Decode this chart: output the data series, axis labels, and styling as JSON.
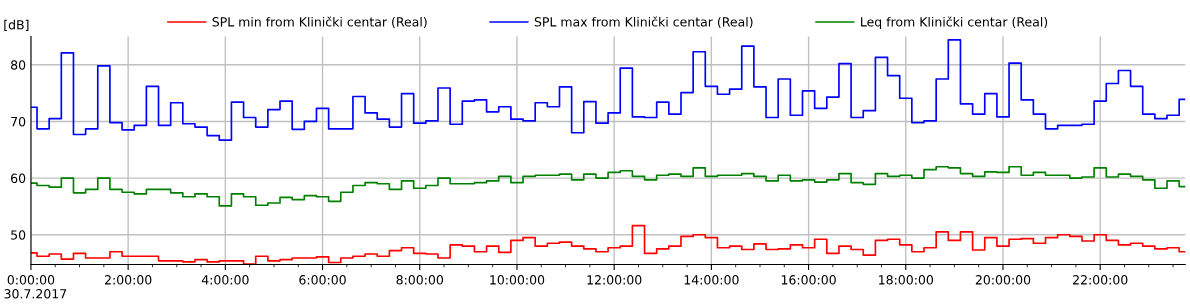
{
  "chart_data": {
    "type": "step",
    "ylabel": "[dB]",
    "annotations": [
      "30.7.2017"
    ],
    "x": [
      0,
      0.25,
      0.5,
      0.75,
      1,
      1.25,
      1.5,
      1.75,
      2,
      2.25,
      2.5,
      2.75,
      3,
      3.25,
      3.5,
      3.75,
      4,
      4.25,
      4.5,
      4.75,
      5,
      5.25,
      5.5,
      5.75,
      6,
      6.25,
      6.5,
      6.75,
      7,
      7.25,
      7.5,
      7.75,
      8,
      8.25,
      8.5,
      8.75,
      9,
      9.25,
      9.5,
      9.75,
      10,
      10.25,
      10.5,
      10.75,
      11,
      11.25,
      11.5,
      11.75,
      12,
      12.25,
      12.5,
      12.75,
      13,
      13.25,
      13.5,
      13.75,
      14,
      14.25,
      14.5,
      14.75,
      15,
      15.25,
      15.5,
      15.75,
      16,
      16.25,
      16.5,
      16.75,
      17,
      17.25,
      17.5,
      17.75,
      18,
      18.25,
      18.5,
      18.75,
      19,
      19.25,
      19.5,
      19.75,
      20,
      20.25,
      20.5,
      20.75,
      21,
      21.25,
      21.5,
      21.75,
      22,
      22.25,
      22.5,
      22.75,
      23,
      23.25,
      23.5,
      23.75
    ],
    "series": [
      {
        "name": "SPL min from Klinički centar (Real)",
        "color": "#ff0000",
        "values": [
          46.8,
          46.2,
          46.6,
          45.7,
          46.7,
          45.9,
          45.9,
          47.0,
          46.2,
          46.2,
          46.2,
          45.4,
          45.4,
          45.2,
          45.6,
          45.2,
          45.4,
          45.4,
          44.8,
          46.2,
          45.4,
          45.6,
          45.9,
          45.9,
          46.1,
          45.1,
          45.9,
          46.2,
          46.6,
          46.2,
          47.2,
          47.7,
          46.7,
          46.6,
          45.9,
          48.2,
          48.0,
          47.0,
          48.0,
          46.9,
          49.0,
          49.5,
          48.0,
          48.5,
          48.7,
          48.0,
          47.5,
          47.0,
          47.7,
          48.0,
          51.6,
          46.7,
          47.5,
          48.0,
          49.7,
          50.0,
          49.5,
          47.7,
          48.0,
          47.4,
          48.4,
          47.4,
          47.5,
          48.2,
          47.7,
          49.2,
          46.7,
          48.0,
          47.4,
          46.4,
          49.0,
          49.2,
          48.2,
          47.0,
          47.7,
          50.5,
          49.0,
          50.5,
          47.3,
          49.5,
          48.0,
          49.2,
          49.3,
          48.5,
          49.5,
          50.0,
          49.7,
          48.9,
          50.0,
          49.0,
          48.2,
          48.5,
          48.0,
          47.5,
          47.7,
          47.0
        ]
      },
      {
        "name": "SPL max from Klinički centar (Real)",
        "color": "#0000ff",
        "values": [
          72.5,
          68.7,
          70.5,
          82.1,
          67.7,
          68.7,
          79.8,
          69.8,
          68.5,
          69.3,
          76.2,
          69.3,
          73.3,
          69.6,
          69.0,
          67.5,
          66.7,
          73.4,
          70.7,
          69.0,
          72.1,
          73.6,
          68.6,
          70.0,
          72.3,
          68.7,
          68.7,
          74.4,
          71.5,
          70.4,
          69.0,
          74.9,
          69.7,
          70.1,
          75.9,
          69.5,
          73.6,
          73.8,
          71.7,
          72.6,
          70.4,
          70.1,
          73.3,
          72.6,
          76.1,
          68.0,
          73.5,
          69.7,
          71.5,
          79.4,
          70.8,
          70.7,
          73.4,
          71.3,
          75.1,
          82.3,
          76.2,
          74.8,
          75.7,
          83.3,
          76.1,
          70.7,
          77.5,
          71.1,
          75.4,
          72.3,
          74.3,
          80.2,
          70.7,
          71.9,
          81.3,
          78.1,
          74.1,
          69.8,
          70.1,
          77.5,
          84.4,
          73.1,
          71.3,
          74.9,
          70.8,
          80.3,
          73.8,
          71.3,
          68.7,
          69.3,
          69.3,
          69.5,
          73.6,
          76.7,
          79.0,
          76.2,
          71.3,
          70.5,
          71.1,
          73.9
        ]
      },
      {
        "name": "Leq from Klinički centar (Real)",
        "color": "#008000",
        "values": [
          59.1,
          58.7,
          58.4,
          60.0,
          57.4,
          58.0,
          60.0,
          58.0,
          57.5,
          57.2,
          58.0,
          58.0,
          57.4,
          56.7,
          57.2,
          56.7,
          55.1,
          57.2,
          56.7,
          55.2,
          55.6,
          56.6,
          56.2,
          56.9,
          56.7,
          55.9,
          57.5,
          58.7,
          59.2,
          59.0,
          58.0,
          59.5,
          58.2,
          58.7,
          60.0,
          59.0,
          59.0,
          59.2,
          59.5,
          60.3,
          59.2,
          60.3,
          60.5,
          60.5,
          60.7,
          59.7,
          60.7,
          60.0,
          61.0,
          61.3,
          60.3,
          59.7,
          60.5,
          60.7,
          60.3,
          61.8,
          60.3,
          60.5,
          60.5,
          60.8,
          60.3,
          59.5,
          60.5,
          59.5,
          59.7,
          59.3,
          59.7,
          60.8,
          59.2,
          58.9,
          60.8,
          60.3,
          60.5,
          60.0,
          61.5,
          62.0,
          61.8,
          60.8,
          60.3,
          61.1,
          61.0,
          62.0,
          60.5,
          61.0,
          60.5,
          60.5,
          60.0,
          60.2,
          61.8,
          60.2,
          60.7,
          60.3,
          59.7,
          58.2,
          59.5,
          58.5
        ]
      }
    ],
    "xlim": [
      0,
      23.75
    ],
    "xticks": [
      {
        "value": 0,
        "label": "0:00:00"
      },
      {
        "value": 0.5,
        "label": null
      },
      {
        "value": 1,
        "label": null
      },
      {
        "value": 1.5,
        "label": null
      },
      {
        "value": 2,
        "label": "2:00:00"
      },
      {
        "value": 2.5,
        "label": null
      },
      {
        "value": 3,
        "label": null
      },
      {
        "value": 3.5,
        "label": null
      },
      {
        "value": 4,
        "label": "4:00:00"
      },
      {
        "value": 4.5,
        "label": null
      },
      {
        "value": 5,
        "label": null
      },
      {
        "value": 5.5,
        "label": null
      },
      {
        "value": 6,
        "label": "6:00:00"
      },
      {
        "value": 6.5,
        "label": null
      },
      {
        "value": 7,
        "label": null
      },
      {
        "value": 7.5,
        "label": null
      },
      {
        "value": 8,
        "label": "8:00:00"
      },
      {
        "value": 8.5,
        "label": null
      },
      {
        "value": 9,
        "label": null
      },
      {
        "value": 9.5,
        "label": null
      },
      {
        "value": 10,
        "label": "10:00:00"
      },
      {
        "value": 10.5,
        "label": null
      },
      {
        "value": 11,
        "label": null
      },
      {
        "value": 11.5,
        "label": null
      },
      {
        "value": 12,
        "label": "12:00:00"
      },
      {
        "value": 12.5,
        "label": null
      },
      {
        "value": 13,
        "label": null
      },
      {
        "value": 13.5,
        "label": null
      },
      {
        "value": 14,
        "label": "14:00:00"
      },
      {
        "value": 14.5,
        "label": null
      },
      {
        "value": 15,
        "label": null
      },
      {
        "value": 15.5,
        "label": null
      },
      {
        "value": 16,
        "label": "16:00:00"
      },
      {
        "value": 16.5,
        "label": null
      },
      {
        "value": 17,
        "label": null
      },
      {
        "value": 17.5,
        "label": null
      },
      {
        "value": 18,
        "label": "18:00:00"
      },
      {
        "value": 18.5,
        "label": null
      },
      {
        "value": 19,
        "label": null
      },
      {
        "value": 19.5,
        "label": null
      },
      {
        "value": 20,
        "label": "20:00:00"
      },
      {
        "value": 20.5,
        "label": null
      },
      {
        "value": 21,
        "label": null
      },
      {
        "value": 21.5,
        "label": null
      },
      {
        "value": 22,
        "label": "22:00:00"
      },
      {
        "value": 22.5,
        "label": null
      },
      {
        "value": 23,
        "label": null
      },
      {
        "value": 23.5,
        "label": null
      }
    ],
    "ylim": [
      44.75,
      85
    ],
    "yticks": [
      50,
      60,
      70,
      80
    ],
    "grid": true,
    "legend": "top",
    "line_style": "solid"
  }
}
